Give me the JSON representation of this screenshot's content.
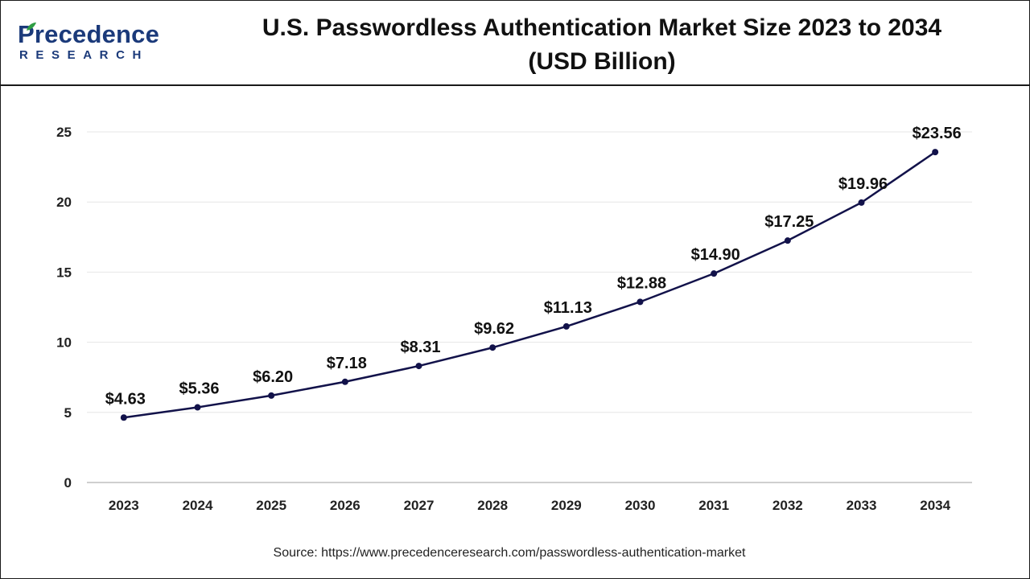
{
  "header": {
    "logo_word": "Precedence",
    "logo_sub": "RESEARCH",
    "title_line1": "U.S. Passwordless Authentication Market Size 2023 to 2034",
    "title_line2": "(USD Billion)"
  },
  "footer": {
    "source": "Source: https://www.precedenceresearch.com/passwordless-authentication-market"
  },
  "colors": {
    "line": "#12124a",
    "brand": "#1b3a7a",
    "grid": "#e6e6e6",
    "axis": "#bfbfbf"
  },
  "chart_data": {
    "type": "line",
    "title": "U.S. Passwordless Authentication Market Size 2023 to 2034 (USD Billion)",
    "categories": [
      "2023",
      "2024",
      "2025",
      "2026",
      "2027",
      "2028",
      "2029",
      "2030",
      "2031",
      "2032",
      "2033",
      "2034"
    ],
    "series": [
      {
        "values": [
          4.63,
          5.36,
          6.2,
          7.18,
          8.31,
          9.62,
          11.13,
          12.88,
          14.9,
          17.25,
          19.96,
          23.56
        ]
      }
    ],
    "data_labels": [
      "$4.63",
      "$5.36",
      "$6.20",
      "$7.18",
      "$8.31",
      "$9.62",
      "$11.13",
      "$12.88",
      "$14.90",
      "$17.25",
      "$19.96",
      "$23.56"
    ],
    "yticks": [
      "0",
      "5",
      "10",
      "15",
      "20",
      "25"
    ],
    "ylim": [
      0,
      25
    ],
    "grid": true,
    "legend": "none",
    "xlabel": "",
    "ylabel": ""
  }
}
